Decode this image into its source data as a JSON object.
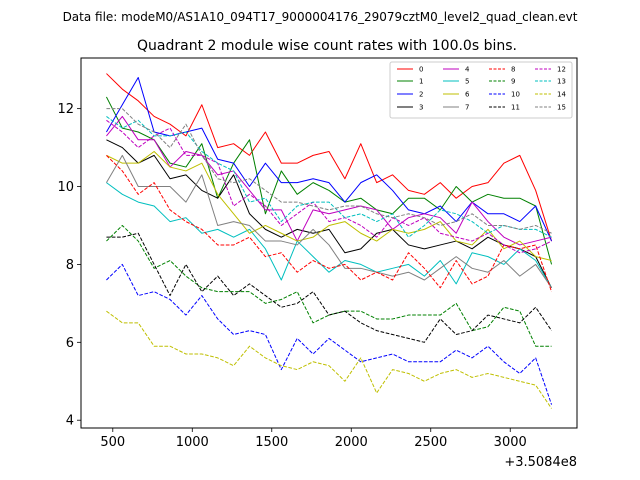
{
  "figure": {
    "suptitle": "Data file: modeM0/AS1A10_094T17_9000004176_29079cztM0_level2_quad_clean.evt"
  },
  "chart_data": {
    "type": "line",
    "title": "Quadrant 2 module wise count rates with 100.0s bins.",
    "xlabel": "",
    "ylabel": "",
    "x_offset_label": "+3.5084e8",
    "xlim": [
      300,
      3420
    ],
    "ylim": [
      3.8,
      13.3
    ],
    "xticks": [
      500,
      1000,
      1500,
      2000,
      2500,
      3000
    ],
    "yticks": [
      4,
      6,
      8,
      10,
      12
    ],
    "legend": {
      "position": "top-right",
      "columns": 4
    },
    "x": [
      460,
      560,
      660,
      760,
      860,
      960,
      1060,
      1160,
      1260,
      1360,
      1460,
      1560,
      1660,
      1760,
      1860,
      1960,
      2060,
      2160,
      2260,
      2360,
      2460,
      2560,
      2660,
      2760,
      2860,
      2960,
      3060,
      3160,
      3260
    ],
    "series": [
      {
        "name": "0",
        "color": "#ff0000",
        "dash": "solid",
        "values": [
          12.9,
          12.5,
          12.2,
          11.8,
          11.6,
          11.3,
          12.1,
          11.0,
          11.1,
          10.8,
          11.4,
          10.6,
          10.6,
          10.8,
          10.9,
          10.2,
          11.1,
          10.1,
          10.3,
          9.9,
          9.8,
          10.1,
          9.7,
          10.0,
          10.1,
          10.6,
          10.8,
          9.9,
          8.6
        ]
      },
      {
        "name": "1",
        "color": "#008000",
        "dash": "solid",
        "values": [
          12.3,
          11.5,
          11.4,
          11.2,
          10.6,
          10.5,
          11.1,
          9.7,
          10.6,
          11.2,
          9.3,
          10.4,
          9.8,
          10.1,
          9.9,
          9.6,
          9.7,
          9.4,
          9.3,
          9.7,
          9.7,
          9.4,
          10.0,
          9.6,
          9.8,
          9.7,
          9.7,
          9.5,
          8.0
        ]
      },
      {
        "name": "2",
        "color": "#0000ff",
        "dash": "solid",
        "values": [
          11.4,
          12.1,
          12.8,
          11.4,
          11.3,
          11.4,
          11.5,
          10.7,
          10.6,
          10.0,
          10.6,
          10.1,
          10.1,
          10.2,
          10.1,
          9.6,
          10.1,
          10.3,
          9.9,
          9.4,
          9.3,
          9.5,
          9.1,
          9.6,
          9.3,
          9.3,
          9.1,
          9.5,
          8.6
        ]
      },
      {
        "name": "3",
        "color": "#000000",
        "dash": "solid",
        "values": [
          11.2,
          11.0,
          10.6,
          10.8,
          10.2,
          10.3,
          9.9,
          9.7,
          10.3,
          9.3,
          8.9,
          8.7,
          8.9,
          8.8,
          8.9,
          8.3,
          8.4,
          8.8,
          8.9,
          8.5,
          8.4,
          8.5,
          8.6,
          8.4,
          8.7,
          8.5,
          8.4,
          8.2,
          7.4
        ]
      },
      {
        "name": "4",
        "color": "#bf00bf",
        "dash": "solid",
        "values": [
          11.3,
          11.8,
          11.2,
          11.2,
          10.5,
          10.9,
          10.8,
          10.3,
          10.4,
          9.9,
          9.4,
          9.4,
          8.6,
          9.4,
          9.3,
          9.4,
          9.5,
          9.4,
          8.9,
          9.2,
          9.3,
          9.2,
          8.8,
          9.6,
          9.1,
          8.7,
          8.5,
          8.6,
          8.7
        ]
      },
      {
        "name": "5",
        "color": "#00bfbf",
        "dash": "solid",
        "values": [
          10.1,
          9.8,
          9.6,
          9.5,
          9.1,
          9.2,
          8.8,
          8.9,
          8.7,
          8.9,
          8.4,
          7.6,
          8.6,
          8.2,
          7.8,
          8.1,
          8.0,
          7.8,
          7.9,
          8.0,
          7.7,
          8.1,
          7.5,
          8.3,
          8.2,
          8.0,
          8.4,
          8.1,
          7.4
        ]
      },
      {
        "name": "6",
        "color": "#bfbf00",
        "dash": "solid",
        "values": [
          10.8,
          10.6,
          10.6,
          10.9,
          10.5,
          10.4,
          10.6,
          9.8,
          9.3,
          8.8,
          9.0,
          8.8,
          8.6,
          8.7,
          9.0,
          9.1,
          8.8,
          8.6,
          8.9,
          8.8,
          8.9,
          9.1,
          8.6,
          8.5,
          8.9,
          8.4,
          8.6,
          8.2,
          8.1
        ]
      },
      {
        "name": "7",
        "color": "#808080",
        "dash": "solid",
        "values": [
          10.1,
          10.8,
          10.0,
          10.0,
          10.0,
          9.6,
          10.3,
          9.0,
          9.1,
          9.0,
          8.6,
          8.6,
          8.5,
          8.9,
          8.5,
          7.9,
          7.9,
          7.8,
          7.7,
          7.8,
          7.6,
          7.9,
          8.2,
          7.9,
          7.8,
          8.1,
          7.7,
          8.0,
          7.4
        ]
      },
      {
        "name": "8",
        "color": "#ff0000",
        "dash": "dashed",
        "values": [
          10.8,
          10.4,
          9.8,
          10.1,
          9.4,
          9.1,
          8.9,
          8.5,
          8.5,
          8.7,
          8.2,
          8.3,
          7.8,
          8.1,
          7.9,
          8.0,
          7.6,
          7.8,
          7.6,
          8.3,
          7.9,
          7.4,
          8.1,
          7.5,
          7.7,
          8.5,
          8.4,
          8.5,
          7.3
        ]
      },
      {
        "name": "9",
        "color": "#008000",
        "dash": "dashed",
        "values": [
          8.6,
          9.0,
          8.6,
          7.9,
          8.1,
          7.7,
          7.4,
          7.3,
          7.3,
          7.3,
          7.0,
          7.1,
          7.3,
          6.5,
          6.7,
          6.8,
          6.8,
          6.6,
          6.6,
          6.7,
          6.7,
          6.7,
          7.0,
          6.3,
          6.4,
          6.9,
          6.8,
          5.9,
          5.9
        ]
      },
      {
        "name": "10",
        "color": "#0000ff",
        "dash": "dashed",
        "values": [
          7.6,
          8.0,
          7.2,
          7.3,
          7.1,
          6.7,
          7.2,
          6.6,
          6.2,
          6.3,
          6.2,
          5.3,
          6.1,
          5.7,
          6.1,
          5.8,
          5.5,
          5.6,
          5.7,
          5.5,
          5.5,
          5.5,
          5.8,
          5.6,
          5.9,
          5.5,
          5.2,
          5.6,
          4.4
        ]
      },
      {
        "name": "11",
        "color": "#000000",
        "dash": "dashed",
        "values": [
          8.7,
          8.7,
          8.8,
          8.0,
          7.2,
          8.0,
          7.3,
          7.7,
          7.2,
          7.5,
          7.2,
          6.9,
          7.0,
          7.3,
          6.7,
          6.8,
          6.5,
          6.3,
          6.2,
          6.1,
          6.0,
          6.6,
          6.2,
          6.3,
          6.7,
          6.6,
          6.5,
          6.9,
          6.3
        ]
      },
      {
        "name": "12",
        "color": "#bf00bf",
        "dash": "dashed",
        "values": [
          11.7,
          11.4,
          11.0,
          11.3,
          11.5,
          10.8,
          10.8,
          10.6,
          9.5,
          9.8,
          9.5,
          9.0,
          9.3,
          9.6,
          9.1,
          9.2,
          9.0,
          8.7,
          9.2,
          9.0,
          9.2,
          8.8,
          8.7,
          8.6,
          8.8,
          8.5,
          8.3,
          8.4,
          8.6
        ]
      },
      {
        "name": "13",
        "color": "#00bfbf",
        "dash": "dashed",
        "values": [
          11.8,
          11.5,
          11.7,
          11.3,
          11.3,
          11.4,
          10.9,
          10.6,
          10.4,
          9.6,
          9.7,
          9.1,
          9.5,
          9.6,
          9.6,
          9.2,
          9.3,
          9.1,
          9.3,
          8.7,
          9.0,
          9.4,
          9.3,
          9.1,
          8.8,
          9.0,
          8.9,
          8.9,
          8.7
        ]
      },
      {
        "name": "14",
        "color": "#bfbf00",
        "dash": "dashed",
        "values": [
          6.8,
          6.5,
          6.5,
          5.9,
          5.9,
          5.7,
          5.7,
          5.6,
          5.4,
          5.9,
          5.6,
          5.4,
          5.3,
          5.5,
          5.4,
          5.0,
          5.6,
          4.7,
          5.3,
          5.2,
          5.0,
          5.2,
          5.3,
          5.1,
          5.2,
          5.1,
          5.0,
          4.9,
          4.3
        ]
      },
      {
        "name": "15",
        "color": "#808080",
        "dash": "dashed",
        "values": [
          12.0,
          12.0,
          11.6,
          11.4,
          11.0,
          11.6,
          10.8,
          10.2,
          10.1,
          10.2,
          9.9,
          9.6,
          9.6,
          9.5,
          9.4,
          9.5,
          9.5,
          9.3,
          9.2,
          9.3,
          9.2,
          9.0,
          9.1,
          9.3,
          9.0,
          9.0,
          8.9,
          9.0,
          8.8
        ]
      }
    ]
  }
}
